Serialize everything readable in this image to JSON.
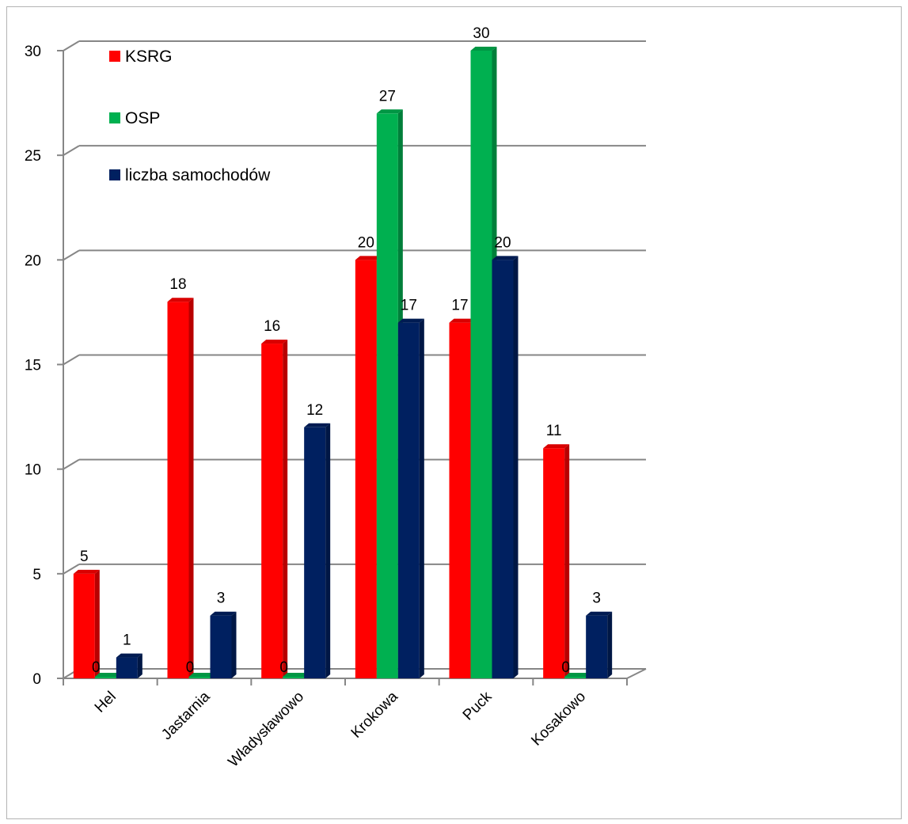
{
  "chart_data": {
    "type": "bar",
    "categories": [
      "Hel",
      "Jastarnia",
      "Władysławowo",
      "Krokowa",
      "Puck",
      "Kosakowo"
    ],
    "series": [
      {
        "name": "KSRG",
        "color": "#ff0000",
        "values": [
          5,
          18,
          16,
          20,
          17,
          11
        ]
      },
      {
        "name": "OSP",
        "color": "#00b050",
        "values": [
          0,
          0,
          0,
          27,
          30,
          0
        ]
      },
      {
        "name": "liczba samochodów",
        "color": "#002060",
        "values": [
          1,
          3,
          12,
          17,
          20,
          3
        ]
      }
    ],
    "y_ticks": [
      "0",
      "5",
      "10",
      "15",
      "20",
      "25",
      "30"
    ],
    "ylim": [
      0,
      30
    ],
    "grid": true,
    "legend_position": "top-left",
    "title": "",
    "xlabel": "",
    "ylabel": ""
  }
}
